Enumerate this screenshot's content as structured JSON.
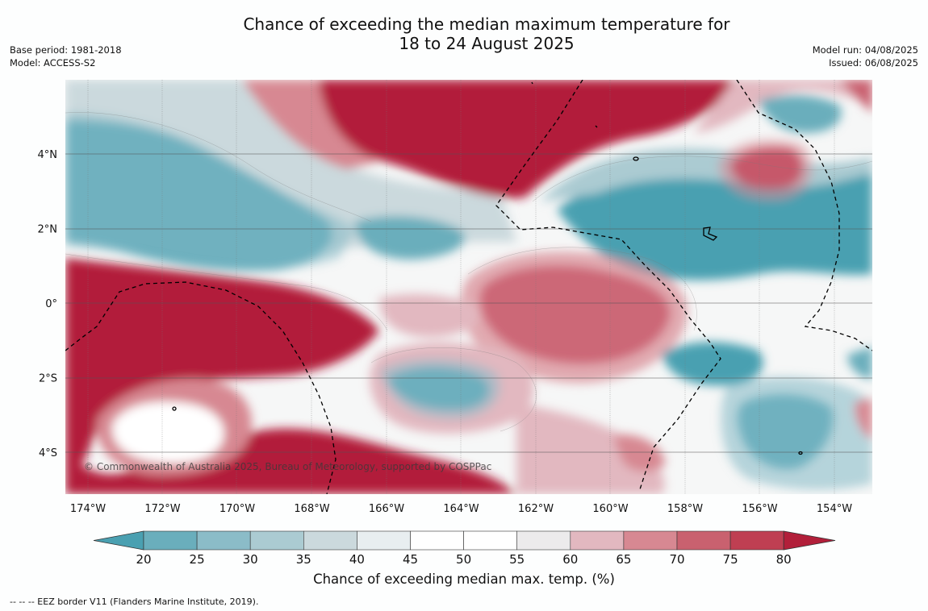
{
  "title": {
    "line1": "Chance of exceeding the median maximum temperature for",
    "line2": "18 to 24 August 2025"
  },
  "meta": {
    "base_period": "Base period: 1981-2018",
    "model": "Model: ACCESS-S2",
    "model_run": "Model run: 04/08/2025",
    "issued": "Issued: 06/08/2025"
  },
  "map": {
    "lon_ticks": [
      "174°W",
      "172°W",
      "170°W",
      "168°W",
      "166°W",
      "164°W",
      "162°W",
      "160°W",
      "158°W",
      "156°W",
      "154°W"
    ],
    "lat_ticks": [
      "4°N",
      "2°N",
      "0°",
      "2°S",
      "4°S"
    ],
    "credit": "© Commonwealth of Australia 2025, Bureau of Meteorology, supported by COSPPac"
  },
  "colorbar": {
    "ticks": [
      "20",
      "25",
      "30",
      "35",
      "40",
      "45",
      "50",
      "55",
      "60",
      "65",
      "70",
      "75",
      "80"
    ],
    "colors": [
      "#4aa0b1",
      "#6aaebc",
      "#8bbcc8",
      "#abcbd2",
      "#cbd9dd",
      "#e8eef0",
      "#ffffff",
      "#ffffff",
      "#ecebec",
      "#e2b8c0",
      "#d78892",
      "#c9616f",
      "#bf3f52",
      "#b21f3a"
    ],
    "label": "Chance of exceeding median max. temp. (%)"
  },
  "legend_note": "--  --  -- EEZ border V11 (Flanders Marine Institute, 2019)."
}
